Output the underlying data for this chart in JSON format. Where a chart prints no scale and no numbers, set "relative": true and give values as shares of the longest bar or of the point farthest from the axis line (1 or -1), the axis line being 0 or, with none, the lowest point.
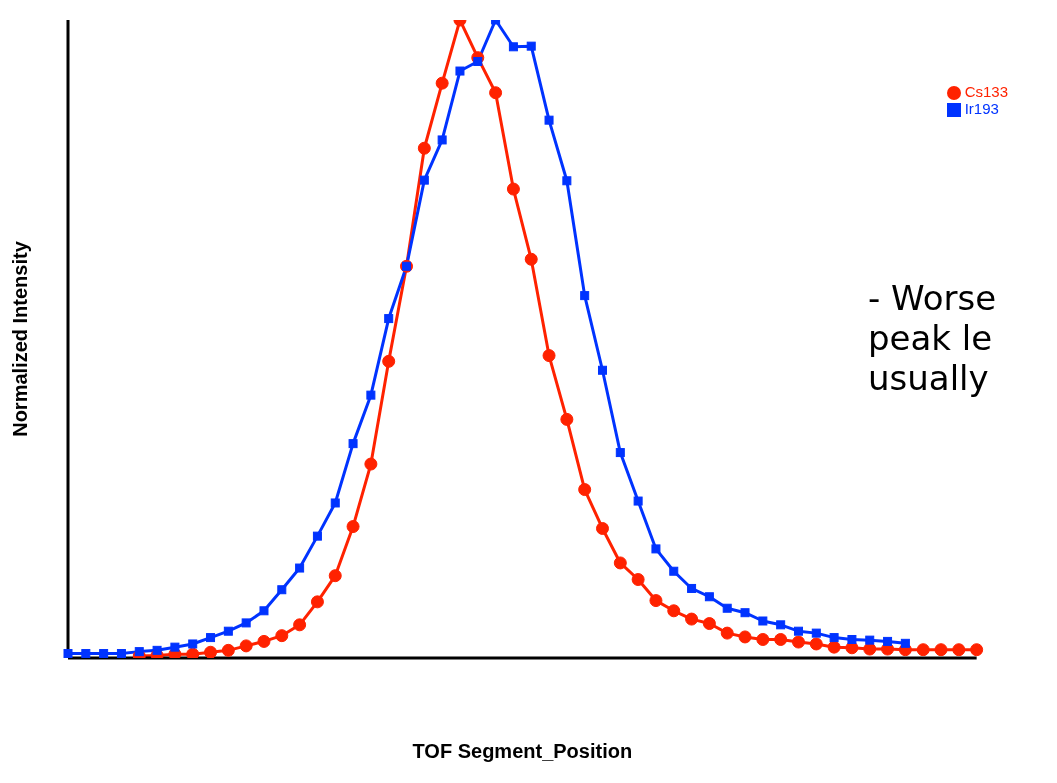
{
  "chart_data": {
    "type": "line",
    "relative": true,
    "xlabel": "TOF Segment_Position",
    "ylabel": "Normalized Intensity",
    "legend": "top right",
    "grid": false,
    "line_style": "solid",
    "categories": [
      null,
      null,
      null,
      null,
      null,
      null,
      null,
      null,
      null,
      null,
      null,
      null,
      null,
      null,
      null,
      null,
      null,
      null,
      null,
      null,
      null,
      null,
      null,
      null,
      null,
      null,
      null,
      null,
      null,
      null,
      null,
      null,
      null,
      null,
      null,
      null,
      null,
      null,
      null,
      null,
      null,
      null,
      null,
      null,
      null,
      null,
      null,
      null,
      null,
      null,
      null,
      null
    ],
    "series": [
      {
        "name": "Cs133",
        "color": "#ff2200",
        "marker": "circle",
        "values": [
          null,
          null,
          null,
          null,
          0.003,
          0.004,
          0.006,
          0.006,
          0.009,
          0.012,
          0.019,
          0.026,
          0.035,
          0.052,
          0.088,
          0.129,
          0.206,
          0.304,
          0.465,
          0.614,
          0.799,
          0.901,
          1,
          0.941,
          0.886,
          0.735,
          0.625,
          0.474,
          0.374,
          0.264,
          0.203,
          0.149,
          0.123,
          0.09,
          0.074,
          0.061,
          0.054,
          0.039,
          0.033,
          0.029,
          0.029,
          0.025,
          0.022,
          0.017,
          0.016,
          0.014,
          0.014,
          0.013,
          0.013,
          0.013,
          0.013,
          0.013
        ]
      },
      {
        "name": "Ir193",
        "color": "#0033ff",
        "marker": "square",
        "values": [
          0.007,
          0.007,
          0.007,
          0.007,
          0.01,
          0.012,
          0.017,
          0.022,
          0.032,
          0.042,
          0.055,
          0.074,
          0.107,
          0.141,
          0.191,
          0.243,
          0.336,
          0.412,
          0.532,
          0.614,
          0.749,
          0.812,
          0.92,
          0.935,
          1,
          0.958,
          0.959,
          0.843,
          0.748,
          0.568,
          0.451,
          0.322,
          0.246,
          0.171,
          0.136,
          0.109,
          0.096,
          0.078,
          0.071,
          0.058,
          0.052,
          0.042,
          0.039,
          0.032,
          0.029,
          0.028,
          0.026,
          0.023,
          null,
          null,
          null,
          null
        ]
      }
    ],
    "annotations": [
      "- Worse\npeak le\nusually"
    ]
  }
}
